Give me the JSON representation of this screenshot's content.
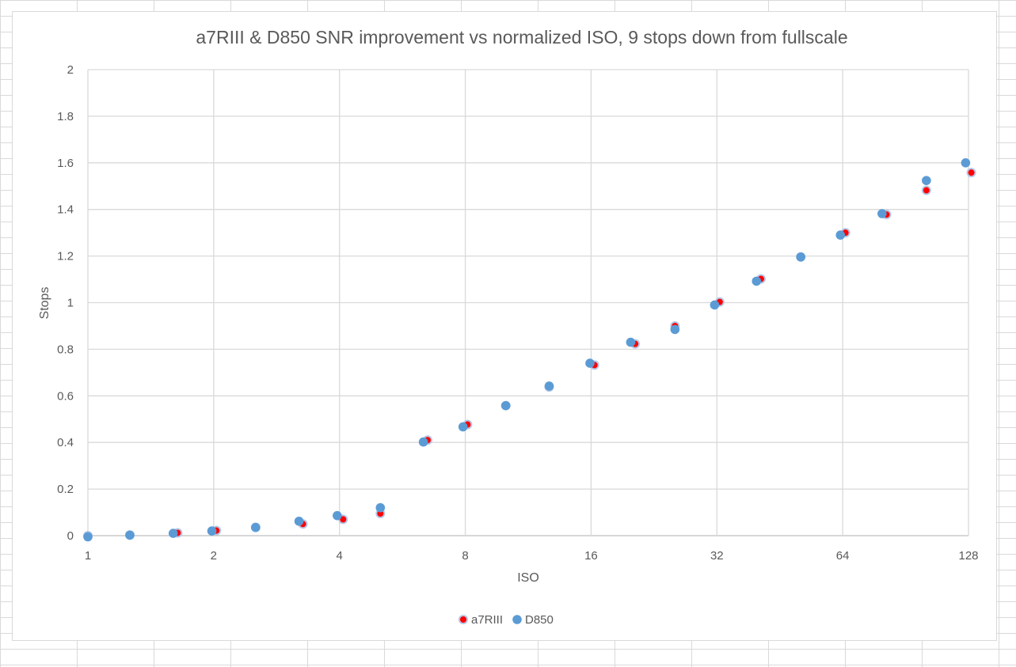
{
  "chart_data": {
    "type": "scatter",
    "title": "a7RIII & D850 SNR improvement vs normalized ISO, 9 stops down from fullscale",
    "xlabel": "ISO",
    "ylabel": "Stops",
    "x_scale": "log2",
    "xlim": [
      1,
      128
    ],
    "ylim": [
      0,
      2
    ],
    "x_ticks": [
      1,
      2,
      4,
      8,
      16,
      32,
      64,
      128
    ],
    "x_tick_labels": [
      "1",
      "2",
      "4",
      "8",
      "16",
      "32",
      "64",
      "128"
    ],
    "y_ticks": [
      0,
      0.2,
      0.4,
      0.6,
      0.8,
      1,
      1.2,
      1.4,
      1.6,
      1.8,
      2
    ],
    "y_tick_labels": [
      "0",
      "0.2",
      "0.4",
      "0.6",
      "0.8",
      "1",
      "1.2",
      "1.4",
      "1.6",
      "1.8",
      "2"
    ],
    "grid": true,
    "legend_position": "bottom",
    "series": [
      {
        "name": "a7RIII",
        "color": "#ff0000",
        "border_color": "#b4c7e7",
        "points": [
          {
            "x": 1,
            "y": 0
          },
          {
            "x": 1.26,
            "y": 0.003
          },
          {
            "x": 1.64,
            "y": 0.012
          },
          {
            "x": 2.03,
            "y": 0.022
          },
          {
            "x": 2.52,
            "y": 0.036
          },
          {
            "x": 3.27,
            "y": 0.05
          },
          {
            "x": 4.08,
            "y": 0.07
          },
          {
            "x": 5.01,
            "y": 0.095
          },
          {
            "x": 6.5,
            "y": 0.41
          },
          {
            "x": 8.1,
            "y": 0.477
          },
          {
            "x": 10,
            "y": 0.558
          },
          {
            "x": 12.7,
            "y": 0.638
          },
          {
            "x": 16.3,
            "y": 0.732
          },
          {
            "x": 20.4,
            "y": 0.823
          },
          {
            "x": 25.4,
            "y": 0.9
          },
          {
            "x": 32.5,
            "y": 1.003
          },
          {
            "x": 40.8,
            "y": 1.102
          },
          {
            "x": 50.8,
            "y": 1.196
          },
          {
            "x": 65,
            "y": 1.3
          },
          {
            "x": 81.5,
            "y": 1.378
          },
          {
            "x": 101.5,
            "y": 1.482
          },
          {
            "x": 130,
            "y": 1.558
          }
        ]
      },
      {
        "name": "D850",
        "color": "#5b9bd5",
        "points": [
          {
            "x": 1,
            "y": -0.005
          },
          {
            "x": 1.26,
            "y": 0.002
          },
          {
            "x": 1.6,
            "y": 0.01
          },
          {
            "x": 1.98,
            "y": 0.02
          },
          {
            "x": 2.52,
            "y": 0.035
          },
          {
            "x": 3.2,
            "y": 0.062
          },
          {
            "x": 3.95,
            "y": 0.086
          },
          {
            "x": 5.01,
            "y": 0.12
          },
          {
            "x": 6.35,
            "y": 0.402
          },
          {
            "x": 7.9,
            "y": 0.467
          },
          {
            "x": 10,
            "y": 0.558
          },
          {
            "x": 12.7,
            "y": 0.642
          },
          {
            "x": 15.9,
            "y": 0.74
          },
          {
            "x": 19.9,
            "y": 0.83
          },
          {
            "x": 25.4,
            "y": 0.885
          },
          {
            "x": 31.6,
            "y": 0.99
          },
          {
            "x": 39.8,
            "y": 1.092
          },
          {
            "x": 50.8,
            "y": 1.196
          },
          {
            "x": 63.2,
            "y": 1.29
          },
          {
            "x": 79.5,
            "y": 1.382
          },
          {
            "x": 101.5,
            "y": 1.524
          },
          {
            "x": 126,
            "y": 1.6
          }
        ]
      }
    ]
  }
}
